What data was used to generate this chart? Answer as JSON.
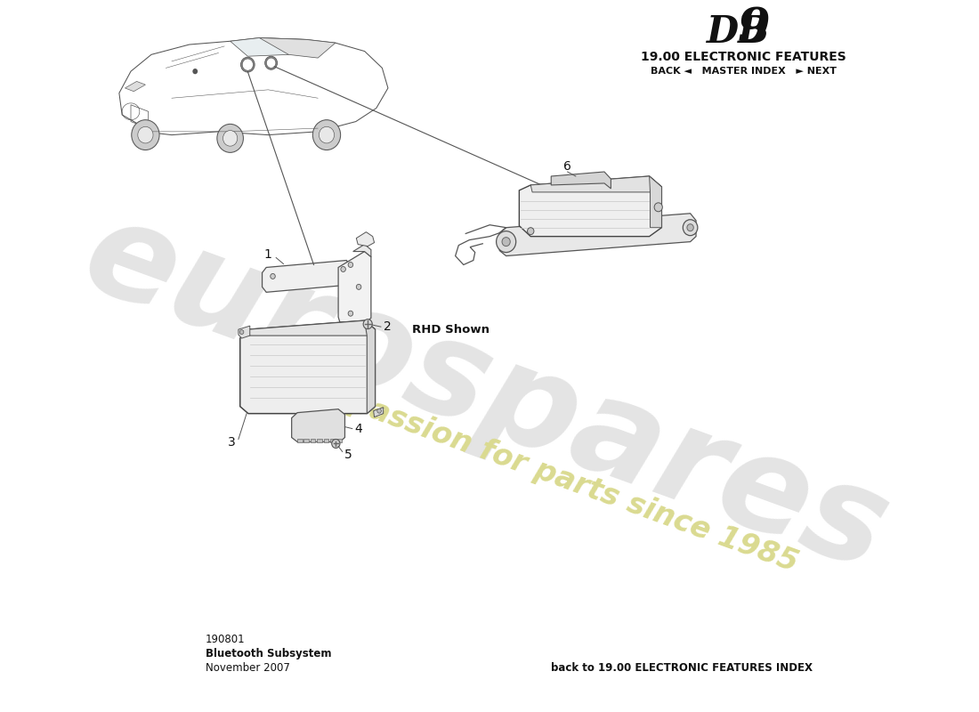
{
  "title_db": "DB",
  "title_num": "9",
  "title_section": "19.00 ELECTRONIC FEATURES",
  "nav_text": "BACK ◄   MASTER INDEX   ► NEXT",
  "bottom_left_line1": "190801",
  "bottom_left_line2": "Bluetooth Subsystem",
  "bottom_left_line3": "November 2007",
  "bottom_right": "back to 19.00 ELECTRONIC FEATURES INDEX",
  "rhd_label": "RHD Shown",
  "bg_color": "#ffffff",
  "line_color": "#444444",
  "text_color": "#111111",
  "part_label_color": "#222222",
  "watermark_euro_color": "#d2d2d2",
  "watermark_passion_color": "#dada90",
  "car_line_color": "#555555",
  "part_line_color": "#555555",
  "part_fill_color": "#f4f4f4",
  "part_edge_color": "#444444"
}
